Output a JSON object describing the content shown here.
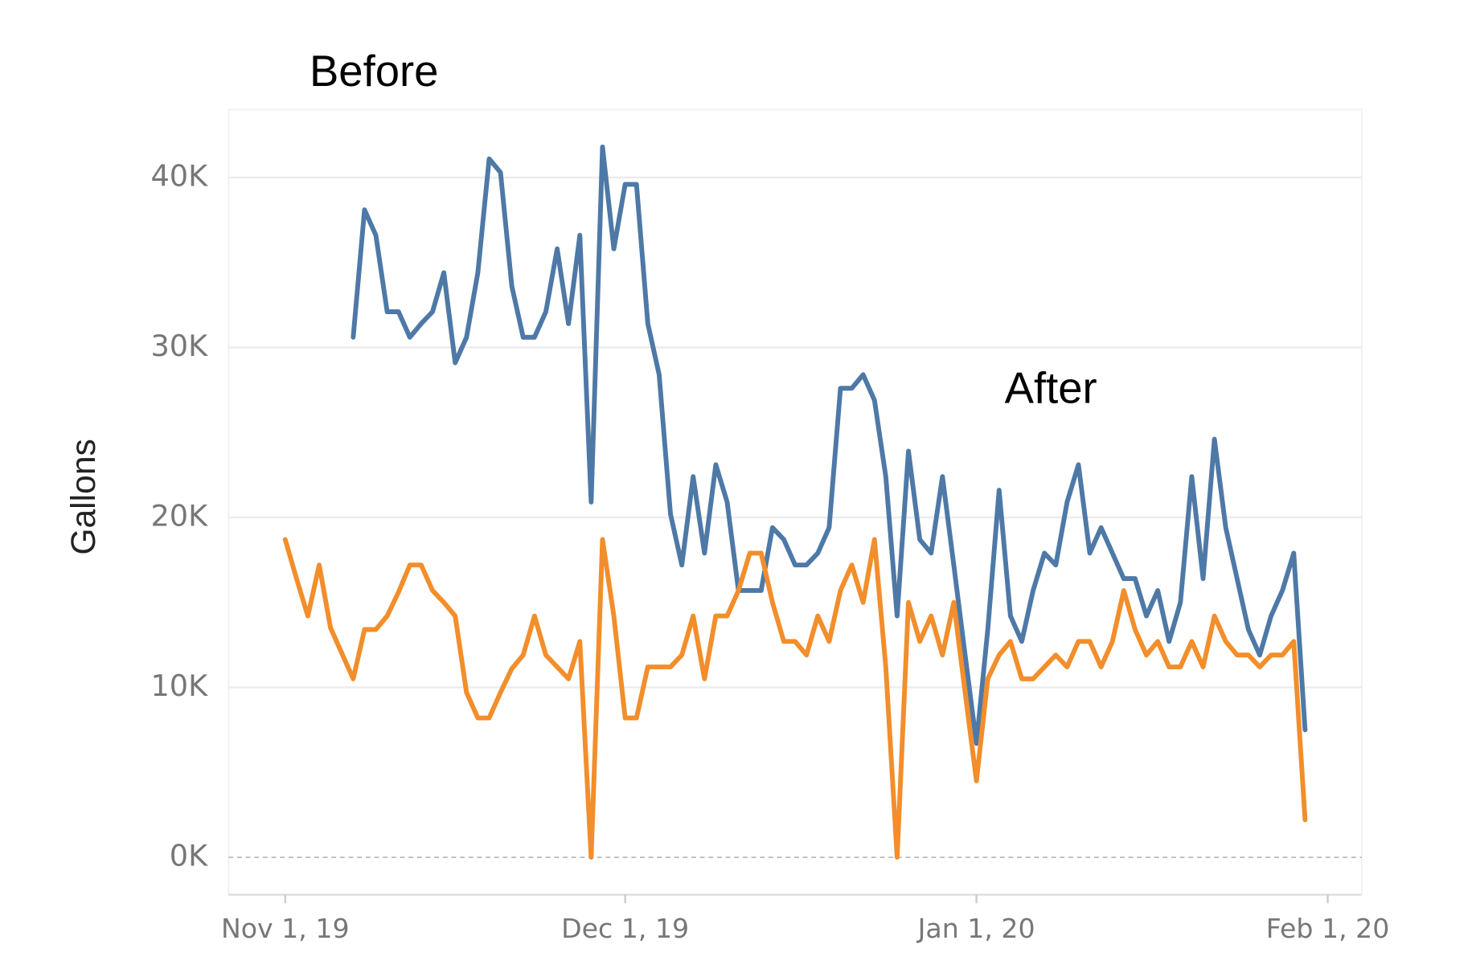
{
  "chart_data": {
    "type": "line",
    "y_label": "Gallons",
    "x": [
      "2019-11-01",
      "2019-11-02",
      "2019-11-03",
      "2019-11-04",
      "2019-11-05",
      "2019-11-06",
      "2019-11-07",
      "2019-11-08",
      "2019-11-09",
      "2019-11-10",
      "2019-11-11",
      "2019-11-12",
      "2019-11-13",
      "2019-11-14",
      "2019-11-15",
      "2019-11-16",
      "2019-11-17",
      "2019-11-18",
      "2019-11-19",
      "2019-11-20",
      "2019-11-21",
      "2019-11-22",
      "2019-11-23",
      "2019-11-24",
      "2019-11-25",
      "2019-11-26",
      "2019-11-27",
      "2019-11-28",
      "2019-11-29",
      "2019-11-30",
      "2019-12-01",
      "2019-12-02",
      "2019-12-03",
      "2019-12-04",
      "2019-12-05",
      "2019-12-06",
      "2019-12-07",
      "2019-12-08",
      "2019-12-09",
      "2019-12-10",
      "2019-12-11",
      "2019-12-12",
      "2019-12-13",
      "2019-12-14",
      "2019-12-15",
      "2019-12-16",
      "2019-12-17",
      "2019-12-18",
      "2019-12-19",
      "2019-12-20",
      "2019-12-21",
      "2019-12-22",
      "2019-12-23",
      "2019-12-24",
      "2019-12-25",
      "2019-12-26",
      "2019-12-27",
      "2019-12-28",
      "2019-12-29",
      "2019-12-30",
      "2019-12-31",
      "2020-01-01",
      "2020-01-02",
      "2020-01-03",
      "2020-01-04",
      "2020-01-05",
      "2020-01-06",
      "2020-01-07",
      "2020-01-08",
      "2020-01-09",
      "2020-01-10",
      "2020-01-11",
      "2020-01-12",
      "2020-01-13",
      "2020-01-14",
      "2020-01-15",
      "2020-01-16",
      "2020-01-17",
      "2020-01-18",
      "2020-01-19",
      "2020-01-20",
      "2020-01-21",
      "2020-01-22",
      "2020-01-23",
      "2020-01-24",
      "2020-01-25",
      "2020-01-26",
      "2020-01-27",
      "2020-01-28",
      "2020-01-29",
      "2020-01-30"
    ],
    "series": [
      {
        "name": "Before",
        "color": "#4e79a7",
        "values": [
          null,
          null,
          null,
          null,
          null,
          null,
          30600,
          38100,
          36600,
          32100,
          32100,
          30600,
          31400,
          32100,
          34400,
          29100,
          30600,
          34400,
          41100,
          40300,
          33600,
          30600,
          30600,
          32100,
          35800,
          31400,
          36600,
          20900,
          41800,
          35800,
          39600,
          39600,
          31400,
          28400,
          20200,
          17200,
          22400,
          17900,
          23100,
          20900,
          15700,
          15700,
          15700,
          19400,
          18700,
          17200,
          17200,
          17900,
          19400,
          27600,
          27600,
          28400,
          26900,
          22400,
          14200,
          23900,
          18700,
          17900,
          22400,
          17200,
          11900,
          6700,
          13400,
          21600,
          14200,
          12700,
          15700,
          17900,
          17200,
          20900,
          23100,
          17900,
          19400,
          17900,
          16400,
          16400,
          14200,
          15700,
          12700,
          15000,
          22400,
          16400,
          24600,
          19400,
          16400,
          13400,
          11900,
          14200,
          15700,
          17900,
          7500
        ]
      },
      {
        "name": "After",
        "color": "#f28e2b",
        "values": [
          18700,
          16400,
          14200,
          17200,
          13500,
          12000,
          10500,
          13400,
          13400,
          14200,
          15600,
          17200,
          17200,
          15700,
          15000,
          14200,
          9700,
          8200,
          8200,
          9700,
          11100,
          11900,
          14200,
          11900,
          11200,
          10500,
          12700,
          0,
          18700,
          14200,
          8200,
          8200,
          11200,
          11200,
          11200,
          11900,
          14200,
          10500,
          14200,
          14200,
          15700,
          17900,
          17900,
          15000,
          12700,
          12700,
          11900,
          14200,
          12700,
          15700,
          17200,
          15000,
          18700,
          11200,
          0,
          15000,
          12700,
          14200,
          11900,
          15000,
          9700,
          4500,
          10500,
          11900,
          12700,
          10500,
          10500,
          11200,
          11900,
          11200,
          12700,
          12700,
          11200,
          12700,
          15700,
          13400,
          11900,
          12700,
          11200,
          11200,
          12700,
          11200,
          14200,
          12700,
          11900,
          11900,
          11200,
          11900,
          11900,
          12700,
          2200
        ]
      }
    ],
    "xlim": [
      "2019-10-27",
      "2020-02-04"
    ],
    "xticks": [
      {
        "value": "2019-11-01",
        "label": "Nov 1, 19"
      },
      {
        "value": "2019-12-01",
        "label": "Dec 1, 19"
      },
      {
        "value": "2020-01-01",
        "label": "Jan 1, 20"
      },
      {
        "value": "2020-02-01",
        "label": "Feb 1, 20"
      }
    ],
    "ylim": [
      -2200,
      44000
    ],
    "yticks": [
      {
        "value": 0,
        "label": "0K"
      },
      {
        "value": 10000,
        "label": "10K"
      },
      {
        "value": 20000,
        "label": "20K"
      },
      {
        "value": 30000,
        "label": "30K"
      },
      {
        "value": 40000,
        "label": "40K"
      }
    ],
    "grid": true
  }
}
